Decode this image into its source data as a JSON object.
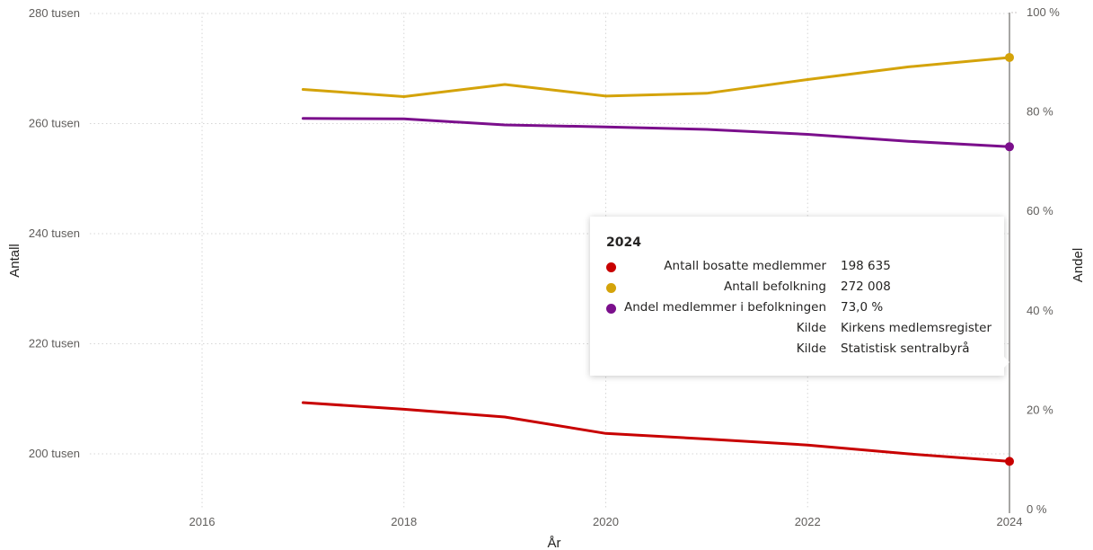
{
  "chart_data": {
    "type": "line",
    "xlabel": "År",
    "ylabel": "Antall",
    "y2label": "Andel",
    "x": [
      2017,
      2018,
      2019,
      2020,
      2021,
      2022,
      2023,
      2024
    ],
    "x_ticks": [
      "2016",
      "2018",
      "2020",
      "2022",
      "2024"
    ],
    "xlim": [
      2015,
      2024
    ],
    "y_ticks": [
      "200 tusen",
      "220 tusen",
      "240 tusen",
      "260 tusen",
      "280 tusen"
    ],
    "ylim": [
      190000,
      280000
    ],
    "y2_ticks": [
      "0 %",
      "20 %",
      "40 %",
      "60 %",
      "80 %",
      "100 %"
    ],
    "y2lim": [
      0,
      100
    ],
    "grid": true,
    "series": [
      {
        "name": "Antall bosatte medlemmer",
        "axis": "left",
        "color": "#c80000",
        "values": [
          209300,
          208100,
          206700,
          203700,
          202700,
          201600,
          200000,
          198635
        ]
      },
      {
        "name": "Antall befolkning",
        "axis": "left",
        "color": "#d4a30a",
        "values": [
          266200,
          264900,
          267100,
          265000,
          265500,
          268000,
          270300,
          272008
        ]
      },
      {
        "name": "Andel medlemmer i befolkningen",
        "axis": "right",
        "color": "#7b0f8c",
        "values": [
          78.7,
          78.6,
          77.4,
          77.0,
          76.5,
          75.5,
          74.1,
          73.0
        ]
      }
    ]
  },
  "tooltip": {
    "title": "2024",
    "rows": [
      {
        "label": "Antall bosatte medlemmer",
        "value": "198 635",
        "color": "#c80000"
      },
      {
        "label": "Antall befolkning",
        "value": "272 008",
        "color": "#d4a30a"
      },
      {
        "label": "Andel medlemmer i befolkningen",
        "value": "73,0 %",
        "color": "#7b0f8c"
      },
      {
        "label": "Kilde",
        "value": "Kirkens medlemsregister"
      },
      {
        "label": "Kilde",
        "value": "Statistisk sentralbyrå"
      }
    ]
  }
}
